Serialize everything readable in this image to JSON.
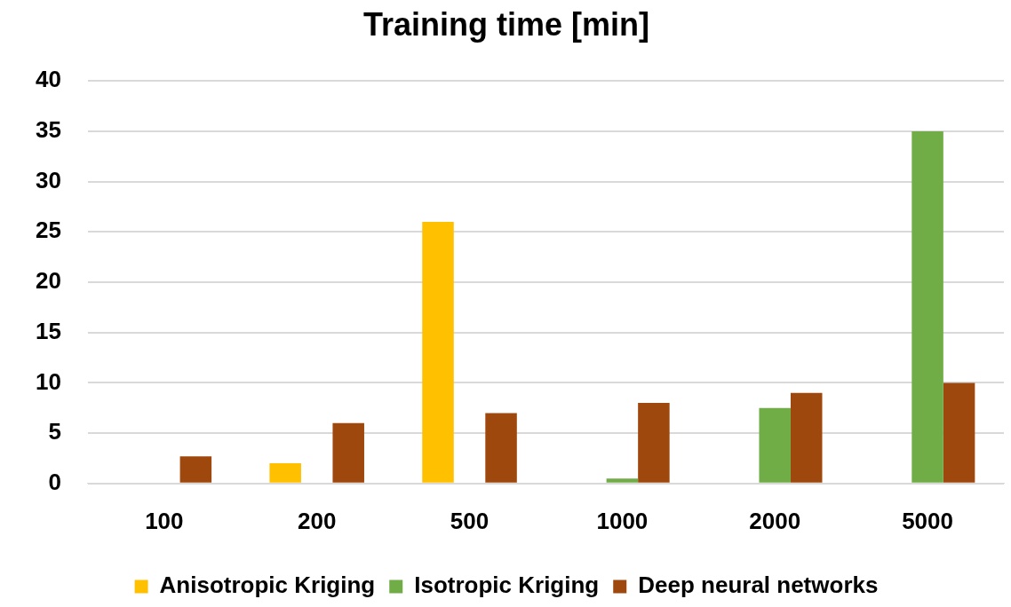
{
  "chart_data": {
    "type": "bar",
    "title": "Training time [min]",
    "categories": [
      "100",
      "200",
      "500",
      "1000",
      "2000",
      "5000"
    ],
    "series": [
      {
        "name": "Anisotropic Kriging",
        "color": "#ffc000",
        "values": [
          null,
          2,
          26,
          null,
          null,
          null
        ]
      },
      {
        "name": "Isotropic Kriging",
        "color": "#70ad47",
        "values": [
          null,
          null,
          null,
          0.5,
          7.5,
          35
        ]
      },
      {
        "name": "Deep neural networks",
        "color": "#9e480e",
        "values": [
          2.7,
          6,
          7,
          8,
          9,
          10
        ]
      }
    ],
    "ylim": [
      0,
      40
    ],
    "yticks": [
      0,
      5,
      10,
      15,
      20,
      25,
      30,
      35,
      40
    ],
    "grid": "y",
    "legend": "bottom"
  }
}
